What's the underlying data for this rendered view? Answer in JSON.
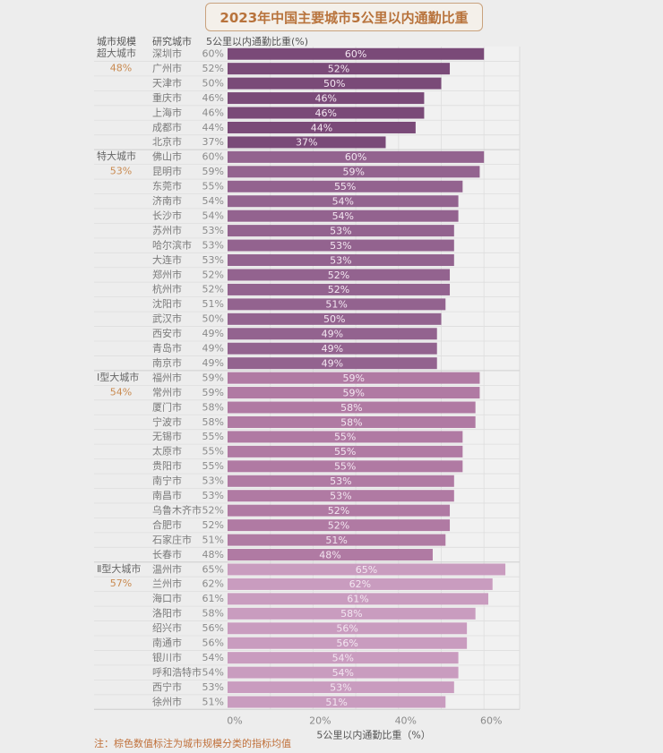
{
  "title": "2023年中国主要城市5公里以内通勤比重",
  "headers": {
    "scale": "城市规模",
    "city": "研究城市",
    "value": "5公里以内通勤比重(%)"
  },
  "note": "注：棕色数值标注为城市规模分类的指标均值",
  "colors": {
    "title_text": "#b8733c",
    "title_border": "#c9a27e",
    "group_mean_text": "#c98a50",
    "bar_super": "#7a4a78",
    "bar_mega": "#93638f",
    "bar_large1": "#b07aa3",
    "bar_large2": "#c99cbf"
  },
  "chart_data": {
    "type": "bar",
    "orientation": "horizontal",
    "title": "2023年中国主要城市5公里以内通勤比重",
    "xlabel": "5公里以内通勤比重（%）",
    "ylabel": "",
    "xlim": [
      0,
      65
    ],
    "xticks": [
      "0%",
      "20%",
      "40%",
      "60%"
    ],
    "xtick_values": [
      0,
      20,
      40,
      60
    ],
    "grid": true,
    "groups": [
      {
        "name": "超大城市",
        "mean": "48%",
        "color_key": "bar_super",
        "cities": [
          "深圳市",
          "广州市",
          "天津市",
          "重庆市",
          "上海市",
          "成都市",
          "北京市"
        ],
        "values": [
          60,
          52,
          50,
          46,
          46,
          44,
          37
        ]
      },
      {
        "name": "特大城市",
        "mean": "53%",
        "color_key": "bar_mega",
        "cities": [
          "佛山市",
          "昆明市",
          "东莞市",
          "济南市",
          "长沙市",
          "苏州市",
          "哈尔滨市",
          "大连市",
          "郑州市",
          "杭州市",
          "沈阳市",
          "武汉市",
          "西安市",
          "青岛市",
          "南京市"
        ],
        "values": [
          60,
          59,
          55,
          54,
          54,
          53,
          53,
          53,
          52,
          52,
          51,
          50,
          49,
          49,
          49
        ]
      },
      {
        "name": "Ⅰ型大城市",
        "mean": "54%",
        "color_key": "bar_large1",
        "cities": [
          "福州市",
          "常州市",
          "厦门市",
          "宁波市",
          "无锡市",
          "太原市",
          "贵阳市",
          "南宁市",
          "南昌市",
          "乌鲁木齐市",
          "合肥市",
          "石家庄市",
          "长春市"
        ],
        "values": [
          59,
          59,
          58,
          58,
          55,
          55,
          55,
          53,
          53,
          52,
          52,
          51,
          48
        ]
      },
      {
        "name": "Ⅱ型大城市",
        "mean": "57%",
        "color_key": "bar_large2",
        "cities": [
          "温州市",
          "兰州市",
          "海口市",
          "洛阳市",
          "绍兴市",
          "南通市",
          "银川市",
          "呼和浩特市",
          "西宁市",
          "徐州市"
        ],
        "values": [
          65,
          62,
          61,
          58,
          56,
          56,
          54,
          54,
          53,
          51
        ]
      }
    ]
  }
}
